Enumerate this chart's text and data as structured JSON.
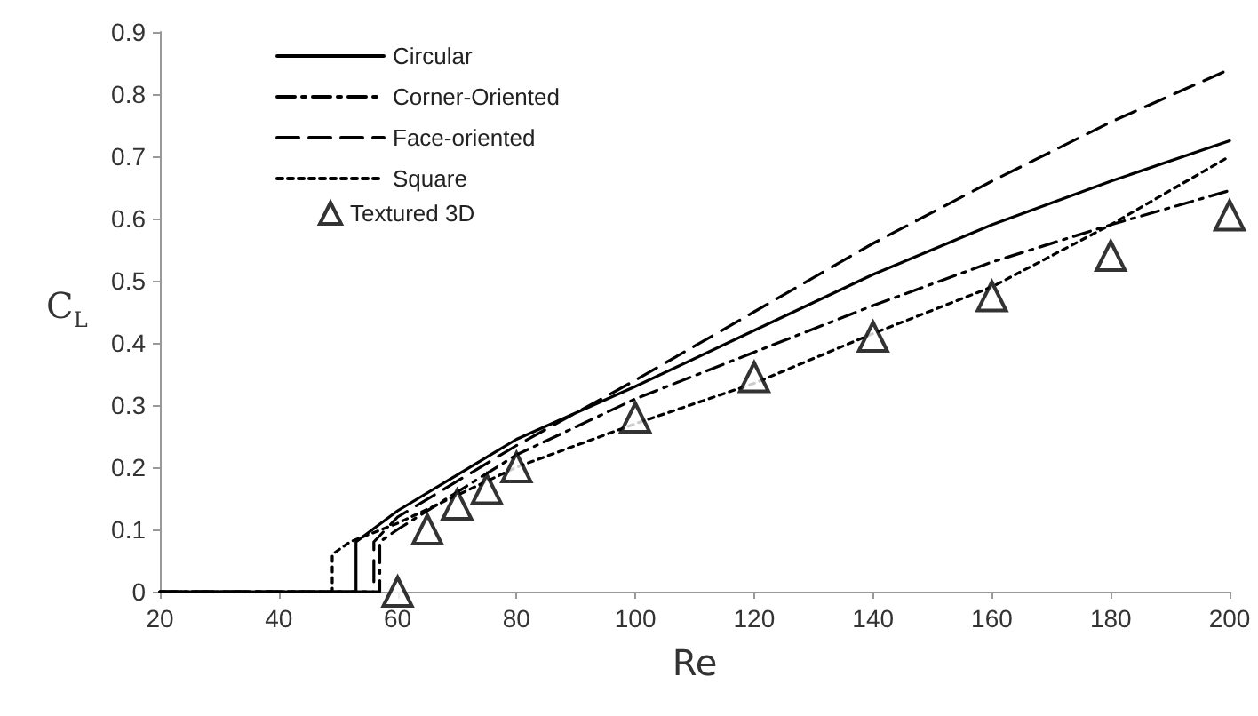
{
  "chart_data": {
    "type": "line",
    "xlabel": "Re",
    "ylabel": "C$_{L}$",
    "xlim": [
      20,
      200
    ],
    "xticks": [
      20,
      40,
      60,
      80,
      100,
      120,
      140,
      160,
      180,
      200
    ],
    "ylim": [
      0,
      0.9
    ],
    "yticks": [
      0,
      0.1,
      0.2,
      0.3,
      0.4,
      0.5,
      0.6,
      0.7,
      0.8,
      0.9
    ],
    "grid": false,
    "legend": "top left",
    "marker": "none",
    "series": [
      {
        "name": "Circular",
        "color": "#000000",
        "line_style": "solid",
        "x": [
          20,
          53,
          53,
          60,
          80,
          100,
          120,
          140,
          160,
          180,
          200
        ],
        "values": [
          0,
          0,
          0.08,
          0.13,
          0.245,
          0.33,
          0.42,
          0.51,
          0.59,
          0.66,
          0.725
        ]
      },
      {
        "name": "Corner-Oriented",
        "color": "#000000",
        "line_style": "dashdot",
        "x": [
          20,
          57,
          57,
          60,
          80,
          100,
          120,
          140,
          160,
          180,
          200
        ],
        "values": [
          0,
          0,
          0.08,
          0.1,
          0.22,
          0.31,
          0.385,
          0.46,
          0.53,
          0.59,
          0.645
        ]
      },
      {
        "name": "Face-oriented",
        "color": "#000000",
        "line_style": "dashed",
        "x": [
          20,
          56,
          56,
          60,
          80,
          100,
          120,
          140,
          160,
          180,
          200
        ],
        "values": [
          0,
          0,
          0.08,
          0.12,
          0.235,
          0.34,
          0.45,
          0.56,
          0.66,
          0.755,
          0.84
        ]
      },
      {
        "name": "Square",
        "color": "#000000",
        "line_style": "dotted",
        "x": [
          20,
          49,
          49,
          52,
          60,
          80,
          100,
          120,
          140,
          160,
          180,
          200
        ],
        "values": [
          0,
          0,
          0.06,
          0.08,
          0.11,
          0.2,
          0.27,
          0.335,
          0.415,
          0.49,
          0.59,
          0.7
        ]
      },
      {
        "name": "Textured 3D",
        "type": "scatter",
        "marker": "triangle",
        "color": "#000000",
        "x": [
          60,
          65,
          70,
          75,
          80,
          100,
          120,
          140,
          160,
          180,
          200
        ],
        "values": [
          0,
          0.1,
          0.14,
          0.165,
          0.2,
          0.28,
          0.345,
          0.41,
          0.475,
          0.54,
          0.605
        ]
      }
    ]
  }
}
